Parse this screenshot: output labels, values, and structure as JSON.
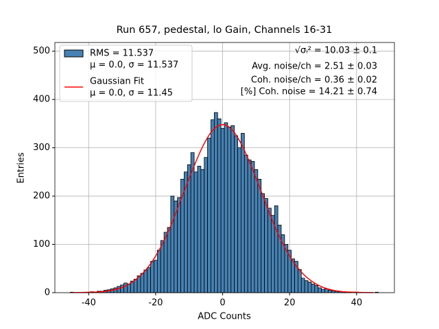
{
  "chart_data": {
    "type": "histogram",
    "title": "Run 657, pedestal, lo Gain, Channels 16-31",
    "xlabel": "ADC Counts",
    "ylabel": "Entries",
    "bins": [
      -45.5,
      -44.5,
      -43.5,
      -42.5,
      -41.5,
      -40.5,
      -39.5,
      -38.5,
      -37.5,
      -36.5,
      -35.5,
      -34.5,
      -33.5,
      -32.5,
      -31.5,
      -30.5,
      -29.5,
      -28.5,
      -27.5,
      -26.5,
      -25.5,
      -24.5,
      -23.5,
      -22.5,
      -21.5,
      -20.5,
      -19.5,
      -18.5,
      -17.5,
      -16.5,
      -15.5,
      -14.5,
      -13.5,
      -12.5,
      -11.5,
      -10.5,
      -9.5,
      -8.5,
      -7.5,
      -6.5,
      -5.5,
      -4.5,
      -3.5,
      -2.5,
      -1.5,
      -0.5,
      0.5,
      1.5,
      2.5,
      3.5,
      4.5,
      5.5,
      6.5,
      7.5,
      8.5,
      9.5,
      10.5,
      11.5,
      12.5,
      13.5,
      14.5,
      15.5,
      16.5,
      17.5,
      18.5,
      19.5,
      20.5,
      21.5,
      22.5,
      23.5,
      24.5,
      25.5,
      26.5,
      27.5,
      28.5,
      29.5,
      30.5,
      31.5,
      32.5,
      33.5,
      34.5,
      35.5,
      36.5,
      37.5,
      38.5,
      39.5,
      40.5,
      41.5,
      42.5,
      43.5,
      44.5,
      45.5,
      46.5
    ],
    "series": [
      {
        "name": [
          "RMS = 11.537",
          "μ = 0.0, σ = 11.537"
        ],
        "color": "#4682b4",
        "edgecolor": "#000000",
        "values": [
          1,
          0,
          0,
          0,
          1,
          1,
          2,
          1,
          3,
          3,
          5,
          6,
          8,
          10,
          13,
          16,
          20,
          18,
          24,
          28,
          35,
          40,
          47,
          52,
          65,
          67,
          88,
          108,
          125,
          135,
          200,
          190,
          197,
          235,
          250,
          265,
          290,
          250,
          262,
          255,
          280,
          320,
          358,
          373,
          360,
          340,
          352,
          343,
          346,
          325,
          300,
          330,
          285,
          275,
          272,
          255,
          235,
          205,
          195,
          175,
          160,
          180,
          140,
          120,
          100,
          88,
          70,
          65,
          48,
          30,
          25,
          22,
          18,
          15,
          10,
          7,
          8,
          5,
          4,
          3,
          2,
          2,
          1,
          1,
          0,
          1,
          0,
          0,
          0,
          0,
          0,
          1
        ]
      },
      {
        "name": [
          "Gaussian Fit",
          "μ = 0.0, σ = 11.45"
        ],
        "type": "line",
        "color": "#ff0000",
        "x": [
          -45,
          -42,
          -39,
          -36,
          -33,
          -30,
          -27,
          -24,
          -21,
          -18,
          -15,
          -12,
          -9,
          -6,
          -3,
          0,
          3,
          6,
          9,
          12,
          15,
          18,
          21,
          24,
          27,
          30,
          33,
          36,
          39,
          42,
          45
        ],
        "values": [
          0.15,
          0.4,
          1,
          2,
          5,
          11,
          22,
          39,
          65,
          101,
          147,
          201,
          254,
          302,
          336,
          348,
          336,
          302,
          254,
          201,
          147,
          101,
          65,
          39,
          22,
          11,
          5,
          2,
          1,
          0.4,
          0.15
        ]
      }
    ],
    "annotations": [
      "√σᵢ² = 10.03 ± 0.1",
      "Avg. noise/ch = 2.51 ± 0.03",
      "Coh. noise/ch = 0.36 ± 0.02",
      "[%] Coh. noise = 14.21 ± 0.74"
    ],
    "xlim": [
      -50.1,
      51.3
    ],
    "ylim": [
      0,
      518
    ],
    "xticks": [
      -40,
      -20,
      0,
      20,
      40
    ],
    "yticks": [
      0,
      100,
      200,
      300,
      400,
      500
    ],
    "grid": true,
    "legend": "upper left"
  }
}
